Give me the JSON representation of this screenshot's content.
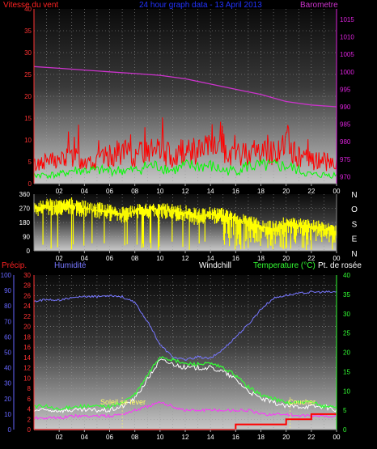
{
  "colors": {
    "wind": "#ff0000",
    "gust": "#00ff00",
    "barometer": "#cc33cc",
    "title": "#2233ff",
    "direction": "#ffff00",
    "precip": "#ff0000",
    "humidity": "#7777ff",
    "windchill": "#ffffff",
    "temperature": "#33ff33",
    "dewpoint": "#ff33ff",
    "sun": "#bbbbbb",
    "axis_left": "#ff3333",
    "axis_right": "#dd22dd",
    "axis_green": "#33ff33",
    "axis_blue": "#6666ff"
  },
  "chart_data": [
    {
      "type": "line",
      "title": "24 hour graph data - 13 April 2013",
      "series": [
        {
          "name": "Vitesse du vent",
          "axis": "left",
          "x": [
            0,
            1,
            2,
            3,
            4,
            5,
            6,
            7,
            8,
            9,
            10,
            11,
            12,
            13,
            14,
            15,
            16,
            17,
            18,
            19,
            20,
            21,
            22,
            23,
            24
          ],
          "values": [
            4,
            5,
            5,
            6,
            5,
            5,
            6,
            7,
            6,
            7,
            7,
            6,
            7,
            7,
            8,
            6,
            6,
            7,
            7,
            7,
            8,
            6,
            5,
            5,
            4
          ]
        },
        {
          "name": "Rafales",
          "axis": "left",
          "x": [
            0,
            1,
            2,
            3,
            4,
            5,
            6,
            7,
            8,
            9,
            10,
            11,
            12,
            13,
            14,
            15,
            16,
            17,
            18,
            19,
            20,
            21,
            22,
            23,
            24
          ],
          "values": [
            2,
            2,
            2,
            3,
            3,
            3,
            3,
            3,
            3,
            4,
            4,
            3,
            4,
            4,
            4,
            3,
            3,
            4,
            4,
            4,
            4,
            3,
            2,
            2,
            2
          ]
        },
        {
          "name": "Barometre",
          "axis": "right",
          "x": [
            0,
            2,
            4,
            6,
            8,
            10,
            12,
            14,
            16,
            18,
            20,
            22,
            24
          ],
          "values": [
            1001.5,
            1001,
            1000.5,
            1000,
            999.5,
            999,
            998,
            996.5,
            995,
            993.5,
            991.5,
            990.5,
            990
          ]
        }
      ],
      "left_axis": {
        "label": "Vitesse du vent",
        "min": 0,
        "max": 40,
        "ticks": [
          "0",
          "5",
          "10",
          "15",
          "20",
          "25",
          "30",
          "35",
          "40"
        ]
      },
      "right_axis": {
        "label": "Barometre",
        "min": 968,
        "max": 1018,
        "ticks": [
          "970",
          "975",
          "980",
          "985",
          "990",
          "995",
          "1000",
          "1005",
          "1010",
          "1015"
        ]
      },
      "x_ticks": [
        "02",
        "04",
        "06",
        "08",
        "10",
        "12",
        "14",
        "16",
        "18",
        "20",
        "22",
        "00"
      ]
    },
    {
      "type": "line",
      "series": [
        {
          "name": "Direction du vent",
          "x": [
            0,
            1,
            2,
            3,
            4,
            5,
            6,
            7,
            8,
            9,
            10,
            11,
            12,
            13,
            14,
            15,
            16,
            17,
            18,
            19,
            20,
            21,
            22,
            23,
            24
          ],
          "values": [
            270,
            285,
            280,
            290,
            270,
            260,
            250,
            230,
            255,
            260,
            265,
            250,
            240,
            220,
            230,
            225,
            200,
            180,
            150,
            140,
            170,
            160,
            150,
            140,
            120
          ]
        }
      ],
      "left_axis": {
        "min": 0,
        "max": 360,
        "ticks": [
          "0",
          "90",
          "180",
          "270",
          "360"
        ]
      },
      "compass_labels": [
        "N",
        "O",
        "S",
        "E",
        "N"
      ],
      "x_ticks": [
        "02",
        "04",
        "06",
        "08",
        "10",
        "12",
        "14",
        "16",
        "18",
        "20",
        "22",
        "00"
      ]
    },
    {
      "type": "line",
      "legend": [
        "Précip.",
        "Humidité",
        "Windchill",
        "Temperature (°C)",
        "Pt. de rosée"
      ],
      "series": [
        {
          "name": "Humidité",
          "axis": "humidity",
          "x": [
            0,
            1,
            2,
            3,
            4,
            5,
            6,
            7,
            8,
            9,
            10,
            11,
            12,
            13,
            14,
            15,
            16,
            17,
            18,
            19,
            20,
            21,
            22,
            23,
            24
          ],
          "values": [
            83,
            84,
            84,
            85,
            86,
            86,
            87,
            86,
            82,
            70,
            55,
            47,
            45,
            47,
            46,
            52,
            60,
            68,
            78,
            85,
            87,
            88,
            89,
            89,
            89
          ]
        },
        {
          "name": "Temperature (°C)",
          "axis": "temperature",
          "x": [
            0,
            1,
            2,
            3,
            4,
            5,
            6,
            7,
            8,
            9,
            10,
            11,
            12,
            13,
            14,
            15,
            16,
            17,
            18,
            19,
            20,
            21,
            22,
            23,
            24
          ],
          "values": [
            6,
            6,
            5,
            6,
            6,
            6,
            6,
            7,
            9,
            14,
            19,
            18,
            17,
            17,
            17,
            16,
            14,
            11,
            9,
            8,
            7,
            7,
            7,
            6,
            6
          ]
        },
        {
          "name": "Windchill",
          "axis": "temperature",
          "x": [
            0,
            1,
            2,
            3,
            4,
            5,
            6,
            7,
            8,
            9,
            10,
            11,
            12,
            13,
            14,
            15,
            16,
            17,
            18,
            19,
            20,
            21,
            22,
            23,
            24
          ],
          "values": [
            5,
            5,
            5,
            5,
            5,
            5,
            5,
            6,
            8,
            13,
            18,
            17,
            16,
            16,
            16,
            15,
            13,
            10,
            8,
            7,
            6,
            6,
            6,
            6,
            5
          ]
        },
        {
          "name": "Pt. de rosée",
          "axis": "temperature",
          "x": [
            0,
            1,
            2,
            3,
            4,
            5,
            6,
            7,
            8,
            9,
            10,
            11,
            12,
            13,
            14,
            15,
            16,
            17,
            18,
            19,
            20,
            21,
            22,
            23,
            24
          ],
          "values": [
            3,
            3,
            3,
            3.5,
            3.5,
            3.5,
            3.5,
            4,
            5,
            6,
            7,
            6,
            5,
            5,
            5,
            5,
            5,
            5,
            4,
            4,
            4,
            3.5,
            3.5,
            3.5,
            3.5
          ]
        },
        {
          "name": "Précip.",
          "axis": "precip",
          "x": [
            0,
            16,
            16,
            20,
            20,
            22,
            22,
            24
          ],
          "values": [
            0,
            0,
            1,
            1,
            2,
            2,
            3,
            3
          ]
        }
      ],
      "annotations": [
        {
          "text": "Soleil se lever",
          "x": 7
        },
        {
          "text": "Coucher",
          "x": 20.3
        }
      ],
      "precip_axis": {
        "min": 0,
        "max": 30,
        "ticks": [
          "0",
          "2",
          "4",
          "6",
          "8",
          "10",
          "12",
          "14",
          "16",
          "18",
          "20",
          "22",
          "24",
          "26",
          "28",
          "30"
        ]
      },
      "humidity_axis": {
        "min": 0,
        "max": 100,
        "ticks": [
          "0",
          "10",
          "20",
          "30",
          "40",
          "50",
          "60",
          "70",
          "80",
          "90",
          "100"
        ]
      },
      "temperature_axis": {
        "min": 0,
        "max": 40,
        "ticks": [
          "0",
          "5",
          "10",
          "15",
          "20",
          "25",
          "30",
          "35",
          "40"
        ]
      },
      "x_ticks": [
        "02",
        "04",
        "06",
        "08",
        "10",
        "12",
        "14",
        "16",
        "18",
        "20",
        "22",
        "00"
      ]
    }
  ]
}
